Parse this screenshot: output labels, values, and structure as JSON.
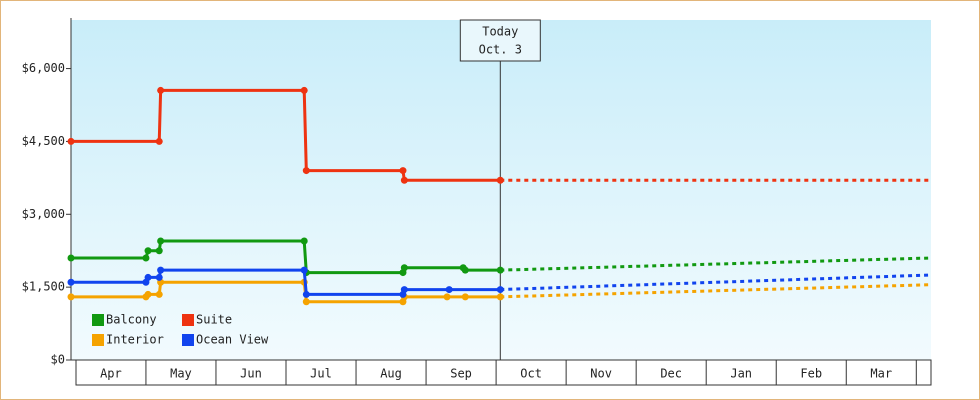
{
  "chart_data": {
    "type": "line",
    "categories": [
      "Apr",
      "May",
      "Jun",
      "Jul",
      "Aug",
      "Sep",
      "Oct",
      "Nov",
      "Dec",
      "Jan",
      "Feb",
      "Mar"
    ],
    "xlim": [
      -0.07,
      12.21
    ],
    "ylim": [
      0,
      7000
    ],
    "yticks": [
      {
        "value": 0,
        "label": "$0"
      },
      {
        "value": 1500,
        "label": "$1,500"
      },
      {
        "value": 3000,
        "label": "$3,000"
      },
      {
        "value": 4500,
        "label": "$4,500"
      },
      {
        "value": 6000,
        "label": "$6,000"
      }
    ],
    "today": {
      "x": 6.06,
      "label": [
        "Today",
        "Oct. 3"
      ]
    },
    "series": [
      {
        "name": "Balcony",
        "color": "#119911",
        "x": [
          -0.07,
          1.0,
          1.03,
          1.19,
          1.21,
          3.26,
          3.29,
          4.67,
          4.69,
          5.53,
          5.56,
          6.06
        ],
        "values": [
          2100,
          2100,
          2250,
          2250,
          2450,
          2450,
          1800,
          1800,
          1900,
          1900,
          1850,
          1850
        ],
        "forecast_x": [
          6.06,
          12.21
        ],
        "forecast": [
          1850,
          2100
        ]
      },
      {
        "name": "Suite",
        "color": "#ee3311",
        "x": [
          -0.07,
          1.19,
          1.21,
          3.26,
          3.29,
          4.67,
          4.69,
          6.06
        ],
        "values": [
          4500,
          4500,
          5550,
          5550,
          3900,
          3900,
          3700,
          3700
        ],
        "forecast_x": [
          6.06,
          12.21
        ],
        "forecast": [
          3700,
          3700
        ]
      },
      {
        "name": "Interior",
        "color": "#f5a300",
        "x": [
          -0.07,
          1.0,
          1.03,
          1.19,
          1.21,
          3.26,
          3.29,
          4.67,
          4.69,
          5.3,
          5.56,
          6.06
        ],
        "values": [
          1300,
          1300,
          1350,
          1350,
          1600,
          1600,
          1200,
          1200,
          1300,
          1300,
          1300,
          1300
        ],
        "forecast_x": [
          6.06,
          12.21
        ],
        "forecast": [
          1300,
          1550
        ]
      },
      {
        "name": "Ocean View",
        "color": "#1144ee",
        "x": [
          -0.07,
          1.0,
          1.03,
          1.19,
          1.21,
          3.26,
          3.29,
          4.67,
          4.69,
          5.33,
          6.06
        ],
        "values": [
          1600,
          1600,
          1700,
          1700,
          1850,
          1850,
          1350,
          1350,
          1450,
          1450,
          1450
        ],
        "forecast_x": [
          6.06,
          12.21
        ],
        "forecast": [
          1450,
          1750
        ]
      }
    ]
  }
}
